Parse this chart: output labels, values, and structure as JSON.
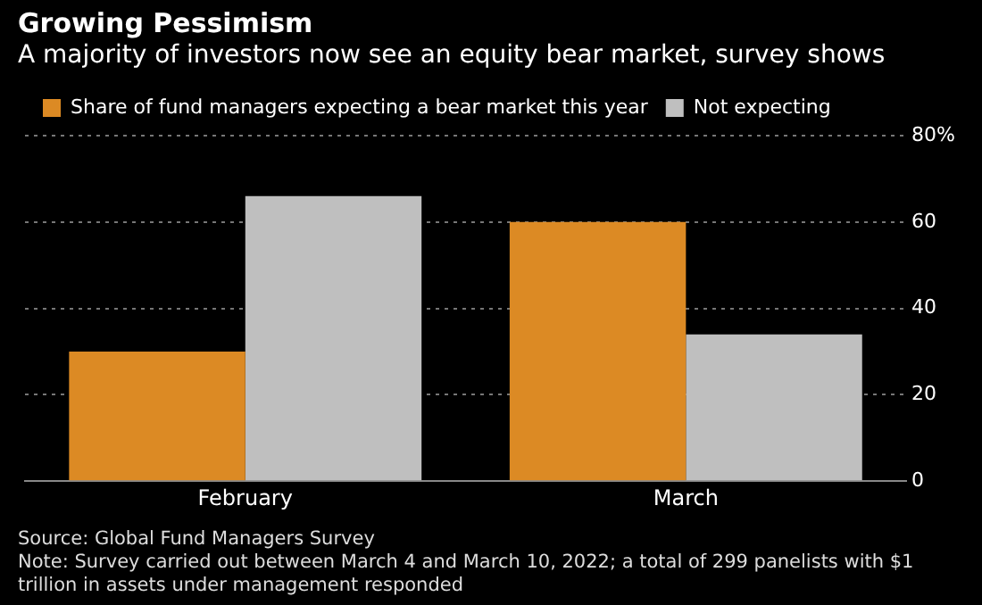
{
  "chart_data": {
    "type": "bar",
    "title": "Growing Pessimism",
    "subtitle": "A majority of investors now see an equity bear market, survey shows",
    "categories": [
      "February",
      "March"
    ],
    "series": [
      {
        "name": "Share of fund managers expecting a bear market this year",
        "color": "#dc8a24",
        "values": [
          30,
          60
        ]
      },
      {
        "name": "Not expecting",
        "color": "#bfbfbf",
        "values": [
          66,
          34
        ]
      }
    ],
    "ylim": [
      0,
      80
    ],
    "yticks": [
      0,
      20,
      40,
      60,
      {
        "value": 80,
        "label": "80%"
      }
    ],
    "grid": "y",
    "legend": "top left",
    "annotations": [
      "Source: Global Fund Managers Survey",
      "Note: Survey carried out between March 4 and March 10, 2022; a total of 299 panelists with $1 trillion in assets under management responded"
    ]
  }
}
